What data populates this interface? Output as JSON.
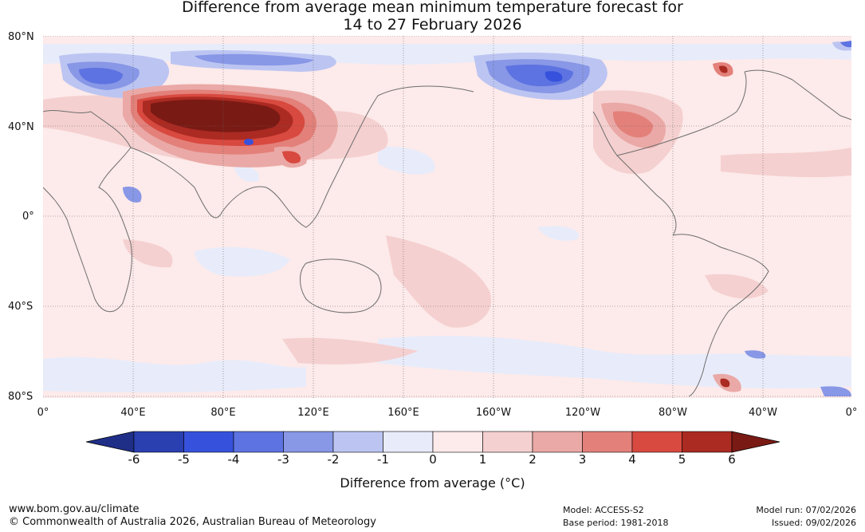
{
  "title": {
    "line1": "Difference from average mean minimum temperature forecast for",
    "line2": "14 to 27 February 2026"
  },
  "latitude_labels": [
    "80°N",
    "40°N",
    "0°",
    "40°S",
    "80°S"
  ],
  "longitude_labels": [
    "0°",
    "40°E",
    "80°E",
    "120°E",
    "160°E",
    "160°W",
    "120°W",
    "80°W",
    "40°W",
    "0°"
  ],
  "colorbar": {
    "ticks": [
      "-6",
      "-5",
      "-4",
      "-3",
      "-2",
      "-1",
      "0",
      "1",
      "2",
      "3",
      "4",
      "5",
      "6"
    ],
    "colors": [
      "#1f2f88",
      "#2a3fb0",
      "#3652dd",
      "#5d73e1",
      "#8897e6",
      "#bcc5f2",
      "#e8ecfa",
      "#fdeaea",
      "#f5d0d0",
      "#eaa9a6",
      "#e3807a",
      "#d8493f",
      "#ab2a22",
      "#7a1a14"
    ],
    "label": "Difference from average (°C)"
  },
  "footer": {
    "website": "www.bom.gov.au/climate",
    "copyright": "© Commonwealth of Australia 2026, Australian Bureau of Meteorology",
    "model": "Model: ACCESS-S2",
    "base_period": "Base period: 1981-2018",
    "model_run": "Model run: 07/02/2026",
    "issued": "Issued: 09/02/2026"
  }
}
